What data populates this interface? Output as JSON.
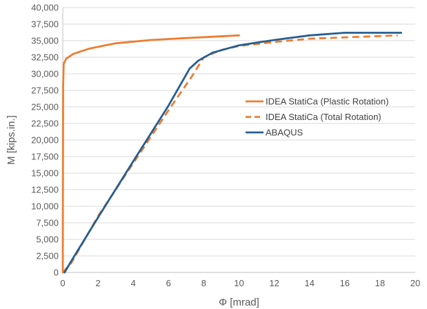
{
  "chart_data": {
    "type": "line",
    "title": "",
    "xlabel": "Φ [mrad]",
    "ylabel": "M [kips.in.]",
    "xlim": [
      0,
      20
    ],
    "ylim": [
      0,
      40000
    ],
    "x_ticks": [
      "0",
      "2",
      "4",
      "6",
      "8",
      "10",
      "12",
      "14",
      "16",
      "18",
      "20"
    ],
    "y_ticks": [
      "0",
      "2,500",
      "5,000",
      "7,500",
      "10,000",
      "12,500",
      "15,000",
      "17,500",
      "20,000",
      "22,500",
      "25,000",
      "27,500",
      "30,000",
      "32,500",
      "35,000",
      "37,500",
      "40,000"
    ],
    "grid": "horizontal",
    "legend_position": "right",
    "series": [
      {
        "name": "IDEA StatiCa (Plastic Rotation)",
        "color": "#ED7D31",
        "dash": "solid",
        "points": [
          [
            0,
            0
          ],
          [
            0.02,
            28000
          ],
          [
            0.05,
            31500
          ],
          [
            0.2,
            32300
          ],
          [
            0.6,
            33000
          ],
          [
            1.5,
            33800
          ],
          [
            3,
            34600
          ],
          [
            5,
            35100
          ],
          [
            7,
            35400
          ],
          [
            10,
            35800
          ]
        ]
      },
      {
        "name": "IDEA StatiCa (Total Rotation)",
        "color": "#ED7D31",
        "dash": "dashed",
        "points": [
          [
            0,
            0
          ],
          [
            0.5,
            1500
          ],
          [
            2,
            8500
          ],
          [
            4,
            16500
          ],
          [
            6,
            24500
          ],
          [
            7.3,
            29500
          ],
          [
            8,
            32500
          ],
          [
            9,
            33600
          ],
          [
            10,
            34200
          ],
          [
            12,
            34800
          ],
          [
            14,
            35300
          ],
          [
            16,
            35500
          ],
          [
            19,
            35800
          ]
        ]
      },
      {
        "name": "ABAQUS",
        "color": "#255E91",
        "dash": "solid",
        "points": [
          [
            0.1,
            0
          ],
          [
            0.5,
            1800
          ],
          [
            2,
            8300
          ],
          [
            4,
            16800
          ],
          [
            6,
            25200
          ],
          [
            7.2,
            30800
          ],
          [
            7.7,
            32000
          ],
          [
            8.5,
            33200
          ],
          [
            10,
            34300
          ],
          [
            12,
            35100
          ],
          [
            14,
            35800
          ],
          [
            16,
            36200
          ],
          [
            19.2,
            36200
          ]
        ]
      }
    ]
  }
}
